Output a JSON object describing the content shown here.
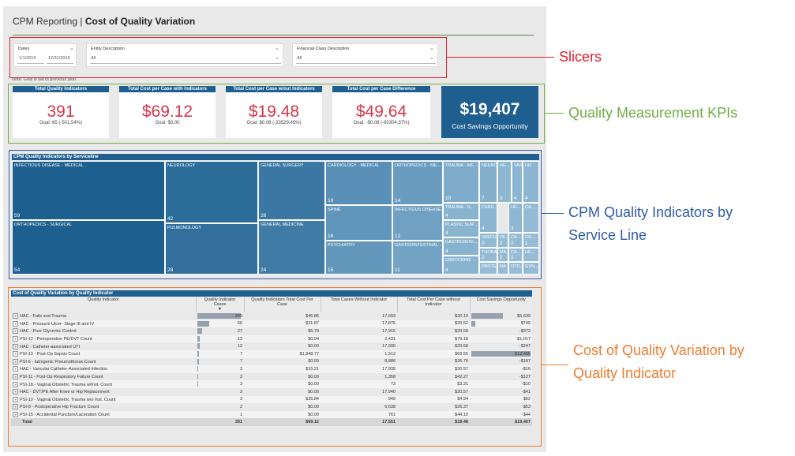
{
  "header": {
    "app": "CPM Reporting",
    "sep": "|",
    "page": "Cost of Quality Variation"
  },
  "slicers": {
    "dates": {
      "label": "Dates",
      "from": "1/1/2016",
      "to": "12/31/2016"
    },
    "entity": {
      "label": "Entity Description",
      "value": "All"
    },
    "financial": {
      "label": "Financial Class Description",
      "value": "All"
    }
  },
  "note": "Note: Goal is set to previous year",
  "kpis": [
    {
      "title": "Total Quality Indicators",
      "value": "391",
      "goal": "Goal: 65 (-501.54%)"
    },
    {
      "title": "Total Cost per Case with Indicators",
      "value": "$69.12",
      "goal": "Goal: $0.00"
    },
    {
      "title": "Total Cost per Case w/out Indicators",
      "value": "$19.48",
      "goal": "Goal: $0.08 (-23529.45%)"
    },
    {
      "title": "Total Cost per Case Difference",
      "value": "$49.64",
      "goal": "Goal: -$0.08 (-60304.37%)"
    }
  ],
  "savings": {
    "value": "$19,407",
    "label": "Cost Savings Opportunity"
  },
  "treemap": {
    "title": "CPM Quality Indicators by Serviceline",
    "cells": [
      {
        "name": "INFECTIOUS DISEASE - MEDICAL",
        "count": "59",
        "color": "#1d5f8e"
      },
      {
        "name": "ORTHOPEDICS - SURGICAL",
        "count": "54",
        "color": "#1d5f8e"
      },
      {
        "name": "NEUROLOGY",
        "count": "42",
        "color": "#2b6c99"
      },
      {
        "name": "PULMONOLOGY",
        "count": "28",
        "color": "#326f9c"
      },
      {
        "name": "GENERAL SURGERY",
        "count": "26",
        "color": "#3a77a2"
      },
      {
        "name": "GENERAL MEDICINE",
        "count": "24",
        "color": "#3f7ba5"
      },
      {
        "name": "CARDIOLOGY - MEDICAL",
        "count": "19",
        "color": "#5a8fb7"
      },
      {
        "name": "SPINE",
        "count": "16",
        "color": "#6196bc"
      },
      {
        "name": "PSYCHIATRY",
        "count": "15",
        "color": "#6397bc"
      },
      {
        "name": "ORTHOPEDICS - ME...",
        "count": "14",
        "color": "#6a9cc0"
      },
      {
        "name": "INFECTIOUS DISEASE...",
        "count": "12",
        "color": "#70a1c3"
      },
      {
        "name": "GASTROINTESTINAL ...",
        "count": "11",
        "color": "#73a3c5"
      },
      {
        "name": "TRAUMA - ME...",
        "count": "10",
        "color": "#7eacca"
      },
      {
        "name": "TRAUMA - S...",
        "count": "4",
        "color": "#89b4d0"
      },
      {
        "name": "PLASTIC SUR...",
        "count": "4",
        "color": "#89b4d0"
      },
      {
        "name": "GASTROINTE...",
        "count": "4",
        "color": "#89b4d0"
      },
      {
        "name": "ENDOCRINE ...",
        "count": "4",
        "color": "#89b4d0"
      },
      {
        "name": "NEUROS...",
        "count": "7",
        "color": "#84b0ce"
      },
      {
        "name": "CARD...",
        "count": "4",
        "color": "#8bb5d1"
      },
      {
        "name": "VASCU...",
        "count": "2",
        "color": "#93bad4"
      },
      {
        "name": "THORA...",
        "count": "2",
        "color": "#93bad4"
      },
      {
        "name": "OBSTE...",
        "count": "",
        "color": "#96bcd5"
      },
      {
        "name": "NE...",
        "count": "3",
        "color": "#8db6d1"
      },
      {
        "name": "DE...",
        "count": "2",
        "color": "#93bad4"
      },
      {
        "name": "MA...",
        "count": "2",
        "color": "#93bad4"
      },
      {
        "name": "NA",
        "count": "",
        "color": "#96bcd5"
      },
      {
        "name": "HE...",
        "count": "3",
        "color": "#8db6d1"
      },
      {
        "name": "CA...",
        "count": "2",
        "color": "#93bad4"
      },
      {
        "name": "CA...",
        "count": "1",
        "color": "#96bcd5"
      },
      {
        "name": "OTO...",
        "count": "",
        "color": "#96bcd5"
      },
      {
        "name": "VAS...",
        "count": "4",
        "color": "#8bb5d1"
      },
      {
        "name": "UR...",
        "count": "4",
        "color": "#8bb5d1"
      },
      {
        "name": "CA...",
        "count": "",
        "color": "#96bcd5"
      },
      {
        "name": "CA...",
        "count": "1",
        "color": "#96bcd5"
      },
      {
        "name": "HE...",
        "count": "",
        "color": "#96bcd5"
      },
      {
        "name": "GYN...",
        "count": "",
        "color": "#96bcd5"
      }
    ]
  },
  "table": {
    "title": "Cost of Quality Variation by Quality Indicator",
    "columns": [
      "Quality Indicator",
      "Quality Indicator Cases",
      "Quality Indicators Total Cost Per Case",
      "Total Cases Without Indicator",
      "Total Cost Per Case without Indicator",
      "Cost Savings Opportunity"
    ],
    "rows": [
      {
        "name": "HAC - Falls and Trauma",
        "cases": "249",
        "cases_n": 249,
        "cost": "$46.86",
        "without": "17,693",
        "cost_without": "$20.19",
        "savings": "$6,639",
        "savings_n": 6639
      },
      {
        "name": "HAC - Pressure Ulcer- Stage III and IV",
        "cases": "66",
        "cases_n": 66,
        "cost": "$31.87",
        "without": "17,876",
        "cost_without": "$20.52",
        "savings": "$749",
        "savings_n": 749
      },
      {
        "name": "HAC - Poor Glycemic Control",
        "cases": "27",
        "cases_n": 27,
        "cost": "$6.79",
        "without": "17,915",
        "cost_without": "$20.58",
        "savings": "-$372",
        "savings_n": 0
      },
      {
        "name": "PSI-12 - Perioperative PE/DVT Count",
        "cases": "13",
        "cases_n": 13,
        "cost": "$0.94",
        "without": "2,431",
        "cost_without": "$79.18",
        "savings": "-$1,017",
        "savings_n": 0
      },
      {
        "name": "HAC - Catheter-associated UTI",
        "cases": "12",
        "cases_n": 12,
        "cost": "$0.00",
        "without": "17,930",
        "cost_without": "$20.58",
        "savings": "-$247",
        "savings_n": 0
      },
      {
        "name": "PSI-13 - Post-Op Sepsis Count",
        "cases": "7",
        "cases_n": 7,
        "cost": "$1,848.77",
        "without": "1,512",
        "cost_without": "$69.55",
        "savings": "$12,455",
        "savings_n": 12455
      },
      {
        "name": "PSI-6 - Iatrogenic Pneumothorax Count",
        "cases": "7",
        "cases_n": 7,
        "cost": "$0.00",
        "without": "8,886",
        "cost_without": "$26.76",
        "savings": "-$187",
        "savings_n": 0
      },
      {
        "name": "HAC - Vascular Catheter-Associated Infection",
        "cases": "3",
        "cases_n": 3,
        "cost": "$15.21",
        "without": "17,939",
        "cost_without": "$20.57",
        "savings": "-$16",
        "savings_n": 0
      },
      {
        "name": "PSI-11 - Post-Op Respiratory Failure Count",
        "cases": "3",
        "cases_n": 3,
        "cost": "$0.00",
        "without": "1,358",
        "cost_without": "$42.27",
        "savings": "-$127",
        "savings_n": 0
      },
      {
        "name": "PSI-18 - Vaginal Obstetric Trauma w/Inst. Count",
        "cases": "3",
        "cases_n": 3,
        "cost": "$0.00",
        "without": "73",
        "cost_without": "$3.31",
        "savings": "-$10",
        "savings_n": 0
      },
      {
        "name": "HAC - DVT/PE After Knee or Hip Replacement",
        "cases": "2",
        "cases_n": 2,
        "cost": "$0.00",
        "without": "17,940",
        "cost_without": "$20.57",
        "savings": "-$41",
        "savings_n": 0
      },
      {
        "name": "PSI-19 - Vaginal Obstetric Trauma w/o Inst. Count",
        "cases": "2",
        "cases_n": 2,
        "cost": "$35.84",
        "without": "949",
        "cost_without": "$4.94",
        "savings": "$62",
        "savings_n": 62
      },
      {
        "name": "PSI-8 - Postoperative Hip Fracture Count",
        "cases": "2",
        "cases_n": 2,
        "cost": "$0.00",
        "without": "6,638",
        "cost_without": "$26.37",
        "savings": "-$53",
        "savings_n": 0
      },
      {
        "name": "PSI-15 - Accidental Puncture/Laceration Count",
        "cases": "1",
        "cases_n": 1,
        "cost": "$0.00",
        "without": "761",
        "cost_without": "$44.10",
        "savings": "-$44",
        "savings_n": 0
      }
    ],
    "total": {
      "name": "Total",
      "cases": "391",
      "cost": "$69.12",
      "without": "17,551",
      "cost_without": "$19.48",
      "savings": "$19,407"
    }
  },
  "callouts": {
    "slicers": "Slicers",
    "kpis": "Quality Measurement KPIs",
    "serviceline": "CPM Quality Indicators by Service Line",
    "variation": "Cost of Quality Variation by Quality Indicator"
  },
  "colors": {
    "red": "#e0202e",
    "green": "#70ad47",
    "blue": "#2f5ba8",
    "orange": "#ed7d31",
    "kpi_red": "#d9344a",
    "navy": "#1f5f8f"
  }
}
